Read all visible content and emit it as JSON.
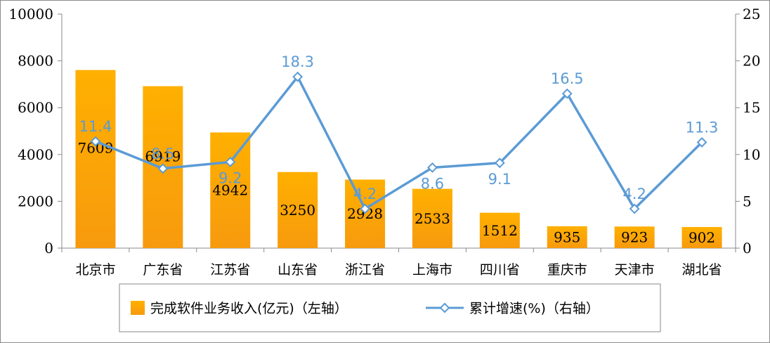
{
  "chart_data": {
    "type": "bar",
    "categories": [
      "北京市",
      "广东省",
      "江苏省",
      "山东省",
      "浙江省",
      "上海市",
      "四川省",
      "重庆市",
      "天津市",
      "湖北省"
    ],
    "series": [
      {
        "name": "完成软件业务收入(亿元)（左轴）",
        "type": "bar",
        "axis": "left",
        "values": [
          7609,
          6919,
          4942,
          3250,
          2928,
          2533,
          1512,
          935,
          923,
          902
        ]
      },
      {
        "name": "累计增速(%)（右轴）",
        "type": "line",
        "axis": "right",
        "values": [
          11.4,
          8.5,
          9.2,
          18.3,
          4.2,
          8.6,
          9.1,
          16.5,
          4.2,
          11.3
        ]
      }
    ],
    "y_left": {
      "lim": [
        0,
        10000
      ],
      "ticks": [
        0,
        2000,
        4000,
        6000,
        8000,
        10000
      ]
    },
    "y_right": {
      "lim": [
        0,
        25
      ],
      "ticks": [
        0,
        5,
        10,
        15,
        20,
        25
      ]
    },
    "grid": false,
    "legend_position": "bottom",
    "colors": {
      "bar_top": "#ffb000",
      "bar_bottom": "#f79a0e",
      "line": "#5b9bd5",
      "axis": "#8a8a8a"
    }
  }
}
